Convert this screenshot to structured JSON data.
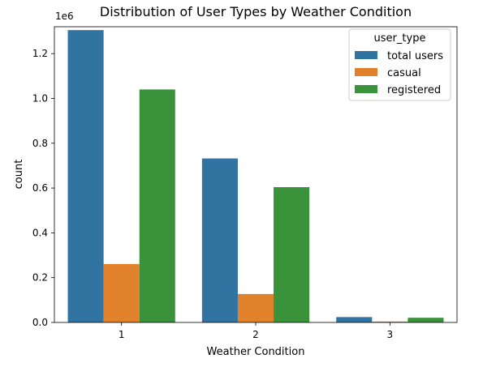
{
  "chart_data": {
    "type": "bar",
    "title": "Distribution of User Types by Weather Condition",
    "xlabel": "Weather Condition",
    "ylabel": "count",
    "scale_label": "1e6",
    "categories": [
      "1",
      "2",
      "3"
    ],
    "yticks": [
      "0.0",
      "0.2",
      "0.4",
      "0.6",
      "0.8",
      "1.0",
      "1.2"
    ],
    "ylim": [
      0,
      1.32
    ],
    "legend": {
      "title": "user_type",
      "placement": "top-right"
    },
    "series": [
      {
        "name": "total users",
        "color": "#3274a1",
        "values": [
          1.305,
          0.732,
          0.024
        ]
      },
      {
        "name": "casual",
        "color": "#e1812c",
        "values": [
          0.261,
          0.127,
          0.004
        ]
      },
      {
        "name": "registered",
        "color": "#3a923a",
        "values": [
          1.04,
          0.604,
          0.021
        ]
      }
    ]
  }
}
